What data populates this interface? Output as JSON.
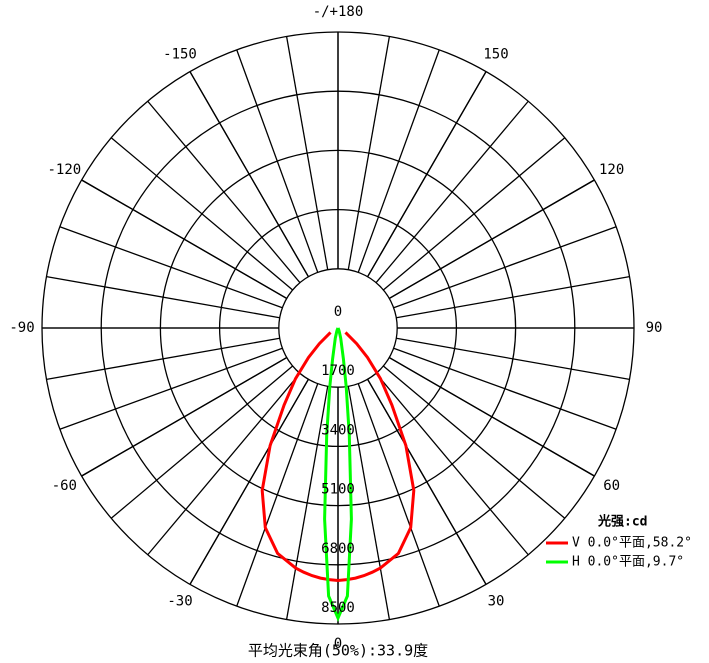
{
  "chart_data": {
    "type": "polar",
    "x": [
      -60,
      -50,
      -45,
      -40,
      -35,
      -30,
      -25,
      -20,
      -15,
      -10,
      -8,
      -6,
      -4,
      -2,
      0,
      2,
      4,
      6,
      8,
      10,
      15,
      20,
      25,
      30,
      35,
      40,
      45,
      50,
      60
    ],
    "series": [
      {
        "name": "V 0.0°平面,58.2°",
        "color": "#ff0000",
        "values": [
          250,
          700,
          1200,
          1900,
          2700,
          3900,
          5150,
          6100,
          6700,
          7000,
          7080,
          7150,
          7200,
          7230,
          7250,
          7230,
          7200,
          7150,
          7080,
          7000,
          6700,
          6100,
          5150,
          3900,
          2700,
          1900,
          1200,
          700,
          250
        ]
      },
      {
        "name": "H 0.0°平面,9.7°",
        "color": "#00ff00",
        "values": [
          0,
          0,
          0,
          0,
          0,
          0,
          50,
          100,
          300,
          900,
          1700,
          3100,
          5500,
          7700,
          8330,
          7700,
          5500,
          3100,
          1700,
          900,
          300,
          100,
          50,
          0,
          0,
          0,
          0,
          0,
          0
        ]
      }
    ],
    "ylim": [
      0,
      8500
    ],
    "yticks": [
      0,
      1700,
      3400,
      5100,
      6800,
      8500
    ],
    "xticks": [
      {
        "value": 180,
        "label": "-/+180"
      },
      150,
      120,
      90,
      60,
      30,
      0,
      -30,
      -60,
      -90,
      -120,
      -150
    ],
    "angle_grid_step": 10,
    "legend_title": "光强:cd",
    "footer": "平均光束角(50%):33.9度"
  }
}
